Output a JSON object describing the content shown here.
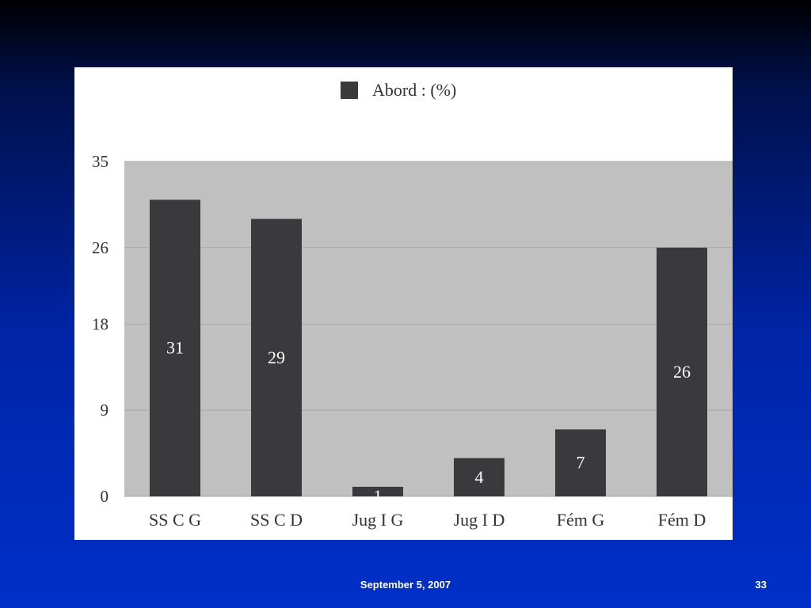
{
  "slide": {
    "footer_date": "September 5, 2007",
    "page_number": "33"
  },
  "colors": {
    "bar": "#3a3a3c",
    "plot_background": "#c0c0c0",
    "gridline": "#a8a8a8",
    "card": "#ffffff",
    "bar_label": "#ffffff"
  },
  "chart_data": {
    "type": "bar",
    "categories": [
      "SS C G",
      "SS C D",
      "Jug I G",
      "Jug I D",
      "Fém G",
      "Fém D"
    ],
    "series": [
      {
        "name": "Abord : (%)",
        "values": [
          31,
          29,
          1,
          4,
          7,
          26
        ],
        "labels": [
          "31",
          "29",
          "1",
          "4",
          "7",
          "26"
        ]
      }
    ],
    "title": "",
    "xlabel": "",
    "ylabel": "",
    "ylim": [
      0,
      35
    ],
    "yticks": [
      0,
      9,
      18,
      26,
      35
    ],
    "ytick_labels": [
      "0",
      "9",
      "18",
      "26",
      "35"
    ],
    "grid": true,
    "legend_position": "top-center"
  }
}
